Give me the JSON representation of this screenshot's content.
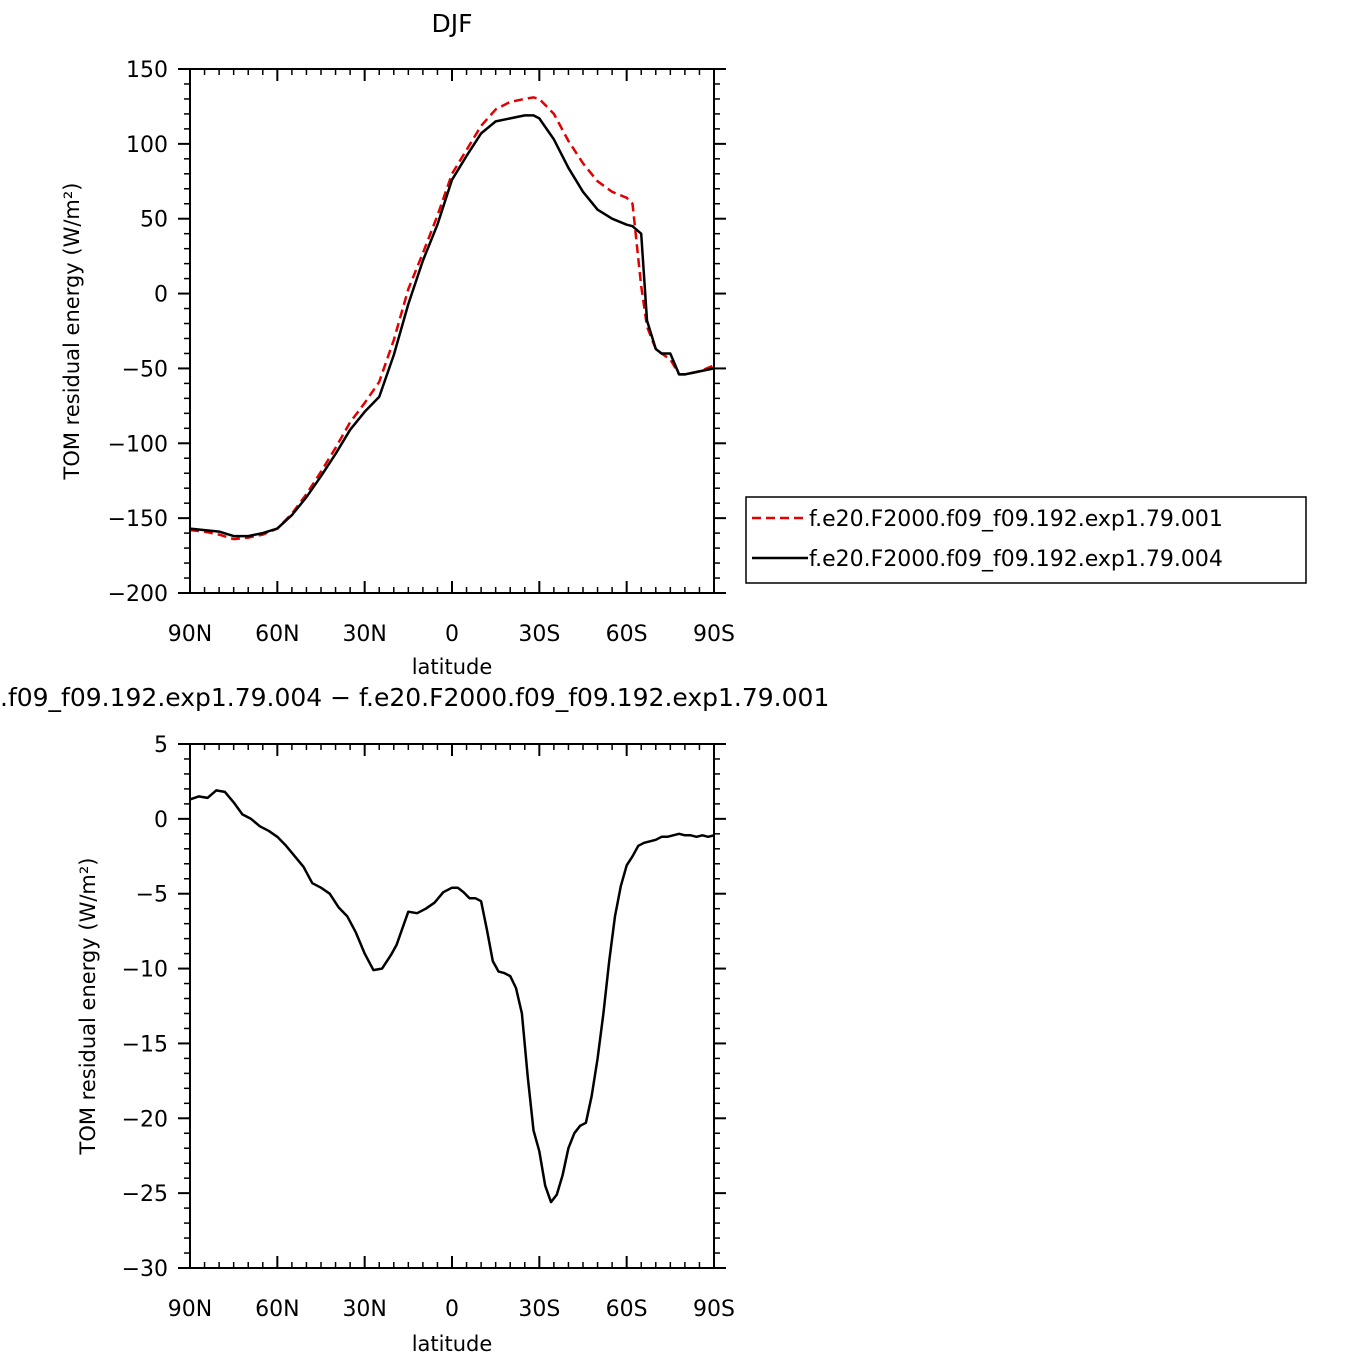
{
  "colors": {
    "line_black": "#000000",
    "line_red": "#e30000",
    "frame": "#000000"
  },
  "chart_data": [
    {
      "type": "line",
      "title": "DJF",
      "xlabel": "latitude",
      "ylabel": "TOM residual energy (W/m²)",
      "x_units": "degrees latitude, positive = North, negative = South",
      "xlim": [
        90,
        -90
      ],
      "ylim": [
        -200,
        150
      ],
      "xticks": [
        90,
        60,
        30,
        0,
        -30,
        -60,
        -90
      ],
      "xtick_labels": [
        "90N",
        "60N",
        "30N",
        "0",
        "30S",
        "60S",
        "90S"
      ],
      "yticks": [
        150,
        100,
        50,
        0,
        -50,
        -100,
        -150,
        -200
      ],
      "ytick_labels": [
        "150",
        "100",
        "50",
        "0",
        "−50",
        "−100",
        "−150",
        "−200"
      ],
      "grid": false,
      "legend_position": "right",
      "series": [
        {
          "name": "f.e20.F2000.f09_f09.192.exp1.79.001",
          "color": "#e30000",
          "style": "dashed",
          "x": [
            90,
            85,
            80,
            75,
            70,
            65,
            60,
            55,
            50,
            45,
            40,
            35,
            30,
            25,
            20,
            15,
            10,
            5,
            0,
            -5,
            -10,
            -15,
            -20,
            -25,
            -28,
            -30,
            -35,
            -40,
            -45,
            -50,
            -55,
            -60,
            -62,
            -65,
            -67,
            -70,
            -72,
            -75,
            -78,
            -80,
            -85,
            -90
          ],
          "y": [
            -158,
            -159,
            -161,
            -164,
            -163,
            -161,
            -157,
            -147,
            -134,
            -119,
            -103,
            -86,
            -73,
            -59,
            -31,
            3,
            27,
            52,
            80,
            96,
            112,
            123,
            128,
            130,
            131,
            130,
            120,
            102,
            87,
            75,
            68,
            64,
            60,
            5,
            -22,
            -37,
            -40,
            -44,
            -54,
            -54,
            -52,
            -48
          ]
        },
        {
          "name": "f.e20.F2000.f09_f09.192.exp1.79.004",
          "color": "#000000",
          "style": "solid",
          "x": [
            90,
            85,
            80,
            75,
            70,
            65,
            60,
            55,
            50,
            45,
            40,
            35,
            30,
            25,
            20,
            15,
            10,
            5,
            0,
            -5,
            -10,
            -15,
            -20,
            -25,
            -28,
            -30,
            -35,
            -40,
            -45,
            -50,
            -55,
            -60,
            -62,
            -65,
            -67,
            -70,
            -72,
            -75,
            -78,
            -80,
            -85,
            -90
          ],
          "y": [
            -157,
            -158,
            -159,
            -162,
            -162,
            -160,
            -157,
            -148,
            -136,
            -122,
            -107,
            -91,
            -79,
            -69,
            -41,
            -7,
            22,
            46,
            76,
            92,
            107,
            115,
            117,
            119,
            119,
            117,
            103,
            84,
            68,
            56,
            50,
            46,
            45,
            40,
            -18,
            -37,
            -40,
            -40,
            -54,
            -54,
            -52,
            -50
          ]
        }
      ]
    },
    {
      "type": "line",
      "title": ".f09_f09.192.exp1.79.004 − f.e20.F2000.f09_f09.192.exp1.79.001",
      "xlabel": "latitude",
      "ylabel": "TOM residual energy (W/m²)",
      "x_units": "degrees latitude, positive = North, negative = South",
      "xlim": [
        90,
        -90
      ],
      "ylim": [
        -30,
        5
      ],
      "xticks": [
        90,
        60,
        30,
        0,
        -30,
        -60,
        -90
      ],
      "xtick_labels": [
        "90N",
        "60N",
        "30N",
        "0",
        "30S",
        "60S",
        "90S"
      ],
      "yticks": [
        5,
        0,
        -5,
        -10,
        -15,
        -20,
        -25,
        -30
      ],
      "ytick_labels": [
        "5",
        "0",
        "−5",
        "−10",
        "−15",
        "−20",
        "−25",
        "−30"
      ],
      "grid": false,
      "series": [
        {
          "color": "#000000",
          "style": "solid",
          "x": [
            90,
            87,
            84,
            81,
            78,
            75,
            72,
            69,
            66,
            63,
            60,
            57,
            54,
            51,
            48,
            45,
            42,
            39,
            36,
            33,
            30,
            27,
            24,
            21,
            19,
            17,
            15,
            12,
            9,
            6,
            3,
            0,
            -2,
            -4,
            -6,
            -8,
            -10,
            -12,
            -14,
            -16,
            -18,
            -20,
            -22,
            -24,
            -26,
            -28,
            -30,
            -32,
            -34,
            -36,
            -38,
            -40,
            -42,
            -44,
            -46,
            -48,
            -50,
            -52,
            -54,
            -56,
            -58,
            -60,
            -62,
            -64,
            -66,
            -68,
            -70,
            -72,
            -74,
            -76,
            -78,
            -80,
            -82,
            -84,
            -86,
            -88,
            -90
          ],
          "y": [
            1.3,
            1.5,
            1.4,
            1.9,
            1.8,
            1.1,
            0.3,
            0.0,
            -0.5,
            -0.8,
            -1.2,
            -1.8,
            -2.5,
            -3.2,
            -4.3,
            -4.6,
            -5.0,
            -5.9,
            -6.5,
            -7.6,
            -9.0,
            -10.1,
            -10.0,
            -9.1,
            -8.4,
            -7.3,
            -6.2,
            -6.3,
            -6.0,
            -5.6,
            -4.9,
            -4.6,
            -4.6,
            -4.9,
            -5.3,
            -5.3,
            -5.5,
            -7.4,
            -9.5,
            -10.2,
            -10.3,
            -10.5,
            -11.3,
            -13.0,
            -17.2,
            -20.8,
            -22.2,
            -24.5,
            -25.6,
            -25.1,
            -23.8,
            -22.0,
            -21.0,
            -20.5,
            -20.3,
            -18.5,
            -16.0,
            -13.0,
            -9.5,
            -6.5,
            -4.5,
            -3.1,
            -2.5,
            -1.8,
            -1.6,
            -1.5,
            -1.4,
            -1.2,
            -1.2,
            -1.1,
            -1.0,
            -1.1,
            -1.1,
            -1.2,
            -1.1,
            -1.2,
            -1.1
          ]
        }
      ]
    }
  ]
}
